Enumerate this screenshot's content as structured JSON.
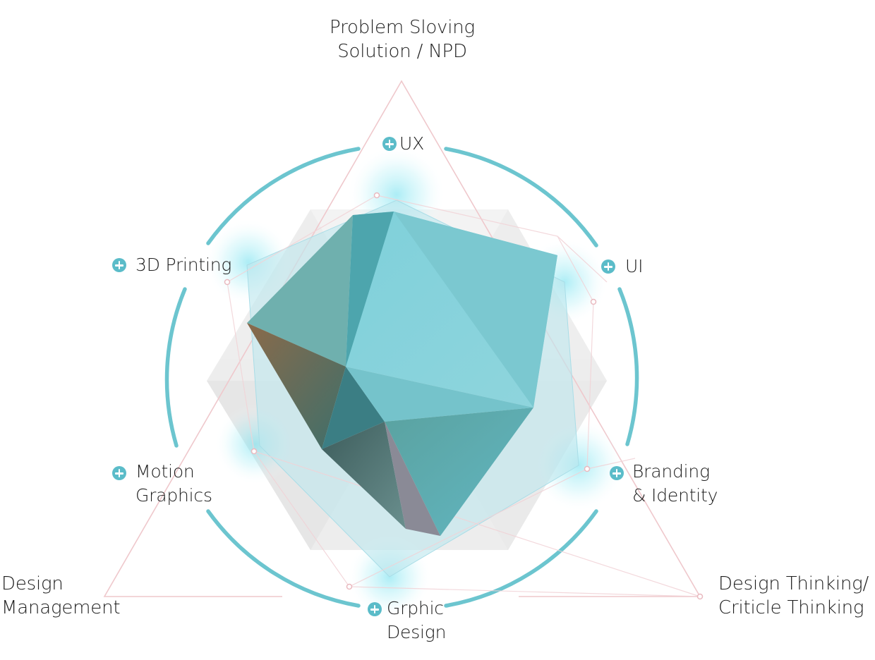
{
  "diagram": {
    "corner_labels": {
      "top": [
        "Problem Sloving",
        "Solution / NPD"
      ],
      "bottom_left": [
        "Design",
        "Management"
      ],
      "bottom_right": [
        "Design Thinking/",
        "Criticle Thinking"
      ]
    },
    "skills": [
      {
        "name": "ux",
        "lines": [
          "UX"
        ]
      },
      {
        "name": "ui",
        "lines": [
          "UI"
        ]
      },
      {
        "name": "branding",
        "lines": [
          "Branding",
          "& Identity"
        ]
      },
      {
        "name": "graphic-design",
        "lines": [
          "Grphic",
          "Design"
        ]
      },
      {
        "name": "motion-graphics",
        "lines": [
          "Motion",
          "Graphics"
        ]
      },
      {
        "name": "3d-printing",
        "lines": [
          "3D Printing"
        ]
      }
    ],
    "colors": {
      "accent": "#5bbcc9",
      "arc": "#6cc5cf",
      "triangle_line": "#efc8cc",
      "hex_grey": "#ebebeb",
      "poly_light": "#bfe6ee",
      "text": "#1e1e1e"
    }
  }
}
